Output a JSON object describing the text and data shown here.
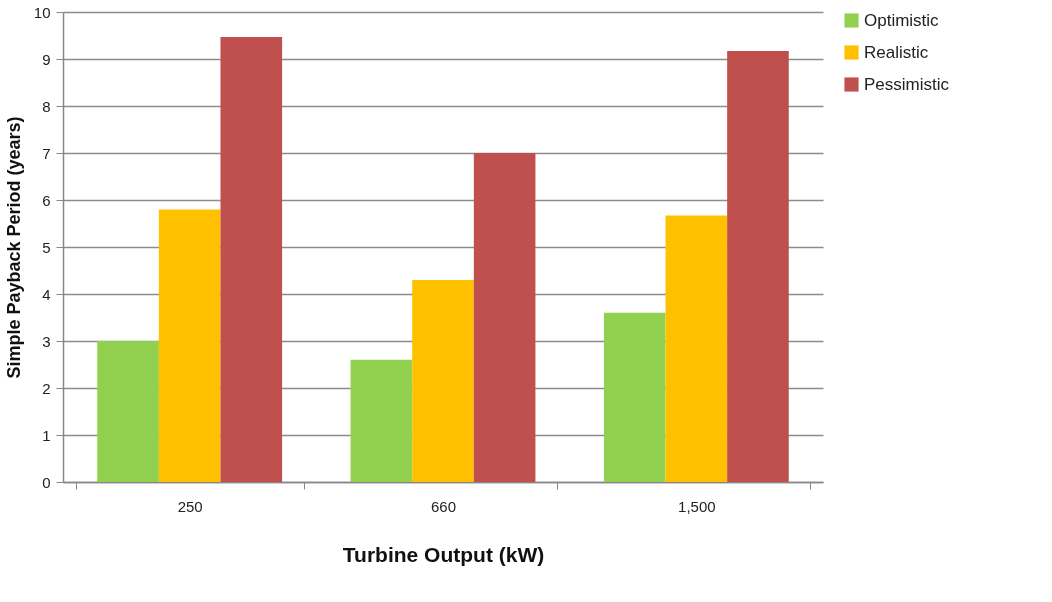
{
  "chart_data": {
    "type": "bar",
    "xlabel": "Turbine Output (kW)",
    "ylabel": "Simple Payback Period (years)",
    "categories": [
      "250",
      "660",
      "1,500"
    ],
    "series": [
      {
        "name": "Optimistic",
        "color": "#92d050",
        "values": [
          3.0,
          2.6,
          3.6
        ]
      },
      {
        "name": "Realistic",
        "color": "#ffc000",
        "values": [
          5.8,
          4.3,
          5.67
        ]
      },
      {
        "name": "Pessimistic",
        "color": "#c0504d",
        "values": [
          9.47,
          7.0,
          9.17
        ]
      }
    ],
    "ylim": [
      0,
      10
    ],
    "yticks": [
      0,
      1,
      2,
      3,
      4,
      5,
      6,
      7,
      8,
      9,
      10
    ],
    "grid": "y",
    "legend": "right"
  }
}
